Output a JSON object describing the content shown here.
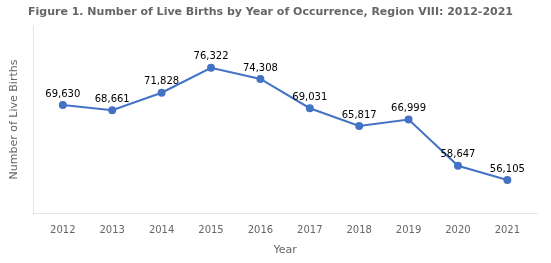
{
  "chart_data": {
    "type": "line",
    "title": "Figure 1. Number of Live Births by Year of Occurrence, Region VIII: 2012-2021",
    "xlabel": "Year",
    "ylabel": "Number of Live Births",
    "x": [
      2012,
      2013,
      2014,
      2015,
      2016,
      2017,
      2018,
      2019,
      2020,
      2021
    ],
    "values": [
      69630,
      68661,
      71828,
      76322,
      74308,
      69031,
      65817,
      66999,
      58647,
      56105
    ],
    "value_labels": [
      "69,630",
      "68,661",
      "71,828",
      "76,322",
      "74,308",
      "69,031",
      "65,817",
      "66,999",
      "58,647",
      "56,105"
    ],
    "color": "#4472C4",
    "marker": "circle",
    "xlim": [
      2011.4,
      2021.6
    ],
    "xticks": [
      2012,
      2013,
      2014,
      2015,
      2016,
      2017,
      2018,
      2019,
      2020,
      2021
    ],
    "ylim": [
      50000,
      84000
    ],
    "grid": false,
    "data_labels": true,
    "tick_labels": "x"
  }
}
